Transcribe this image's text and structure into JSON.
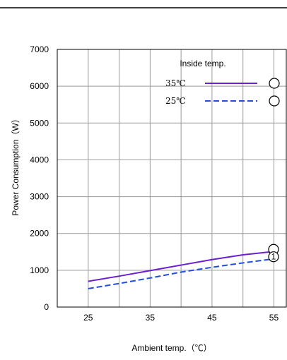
{
  "chart_data": {
    "type": "line",
    "xlabel": "Ambient temp.（℃）",
    "ylabel": "Power Consumption（W）",
    "x": [
      25,
      30,
      35,
      40,
      45,
      50,
      55
    ],
    "xticks": [
      25,
      35,
      45,
      55
    ],
    "yticks": [
      0,
      1000,
      2000,
      3000,
      4000,
      5000,
      6000,
      7000
    ],
    "xlim": [
      20,
      57
    ],
    "ylim": [
      0,
      7000
    ],
    "grid": true,
    "legend": {
      "title": "Inside temp.",
      "position": "top-right"
    },
    "series": [
      {
        "name": "35℃",
        "style": "solid",
        "color": "#6a1fd0",
        "values": [
          700,
          840,
          990,
          1140,
          1290,
          1420,
          1510
        ],
        "marker": ""
      },
      {
        "name": "25℃",
        "style": "dashed",
        "color": "#1f4fe0",
        "values": [
          500,
          640,
          790,
          950,
          1080,
          1200,
          1310
        ],
        "marker": "1"
      }
    ]
  }
}
